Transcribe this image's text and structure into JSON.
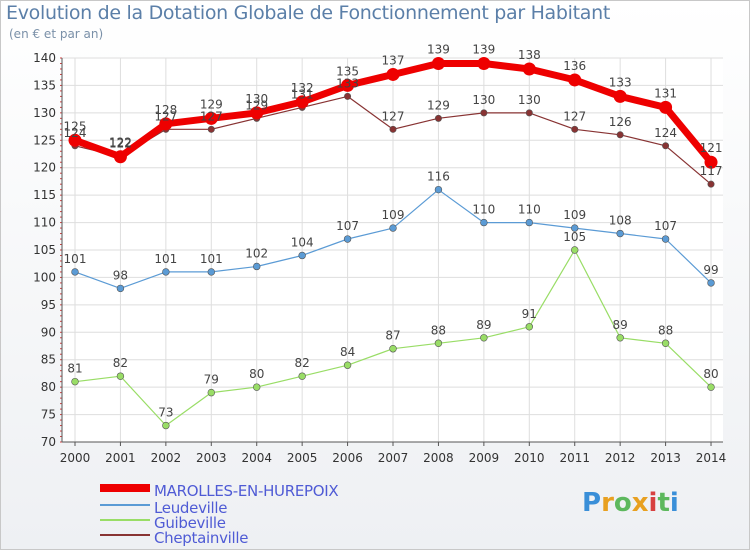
{
  "header": {
    "title": "Evolution de la Dotation Globale de Fonctionnement par Habitant",
    "subtitle": "(en € et par an)"
  },
  "logo": {
    "text": "Proxiti"
  },
  "colors": {
    "marolles": "#ee0000",
    "leudeville": "#5b9bd5",
    "guibeville": "#99dd66",
    "cheptainville": "#883333",
    "legend_text": "#4f5bd5"
  },
  "chart_data": {
    "type": "line",
    "title": "Evolution de la Dotation Globale de Fonctionnement par Habitant",
    "subtitle": "(en € et par an)",
    "xlabel": "",
    "ylabel": "",
    "ylim": [
      70,
      140
    ],
    "yticks": [
      70,
      75,
      80,
      85,
      90,
      95,
      100,
      105,
      110,
      115,
      120,
      125,
      130,
      135,
      140
    ],
    "categories": [
      "2000",
      "2001",
      "2002",
      "2003",
      "2004",
      "2005",
      "2006",
      "2007",
      "2008",
      "2009",
      "2010",
      "2011",
      "2012",
      "2013",
      "2014"
    ],
    "series": [
      {
        "name": "MAROLLES-EN-HUREPOIX",
        "values": [
          125,
          122,
          128,
          129,
          130,
          132,
          135,
          137,
          139,
          139,
          138,
          136,
          133,
          131,
          121
        ]
      },
      {
        "name": "Leudeville",
        "values": [
          101,
          98,
          101,
          101,
          102,
          104,
          107,
          109,
          116,
          110,
          110,
          109,
          108,
          107,
          99
        ]
      },
      {
        "name": "Guibeville",
        "values": [
          81,
          82,
          73,
          79,
          80,
          82,
          84,
          87,
          88,
          89,
          91,
          105,
          89,
          88,
          80
        ]
      },
      {
        "name": "Cheptainville",
        "values": [
          124,
          122,
          127,
          127,
          129,
          131,
          133,
          127,
          129,
          130,
          130,
          127,
          126,
          124,
          117
        ]
      }
    ]
  }
}
